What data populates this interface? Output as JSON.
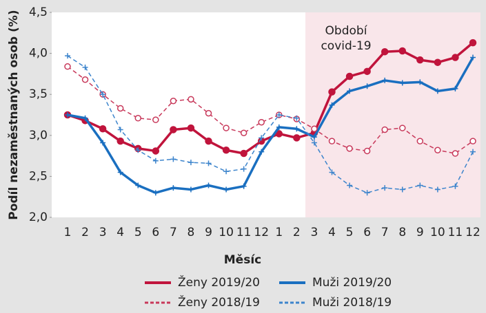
{
  "chart_data": {
    "type": "line",
    "annotation": [
      "Období",
      "covid-19"
    ],
    "x_label": "Měsíc",
    "y_label": "Podíl nezaměstnaných osob (%)",
    "categories": [
      "1",
      "2",
      "3",
      "4",
      "5",
      "6",
      "7",
      "8",
      "9",
      "10",
      "11",
      "12",
      "1",
      "2",
      "3",
      "4",
      "5",
      "6",
      "7",
      "8",
      "9",
      "10",
      "11",
      "12"
    ],
    "ylim": [
      2.0,
      4.5
    ],
    "yticks": [
      {
        "value": 2.0,
        "label": "2,0"
      },
      {
        "value": 2.5,
        "label": "2,5"
      },
      {
        "value": 3.0,
        "label": "3,0"
      },
      {
        "value": 3.5,
        "label": "3,5"
      },
      {
        "value": 4.0,
        "label": "4,0"
      },
      {
        "value": 4.5,
        "label": "4,5"
      }
    ],
    "grid": false,
    "series": [
      {
        "name": "Ženy 2019/20",
        "color": "#c0143c",
        "dash": false,
        "marker": "circle",
        "values": [
          3.25,
          3.18,
          3.08,
          2.93,
          2.84,
          2.81,
          3.07,
          3.09,
          2.93,
          2.82,
          2.78,
          2.93,
          3.02,
          2.97,
          3.03,
          3.53,
          3.72,
          3.78,
          4.02,
          4.03,
          3.92,
          3.89,
          3.95,
          4.13
        ]
      },
      {
        "name": "Muži 2019/20",
        "color": "#1a6fc0",
        "dash": false,
        "marker": "plus",
        "values": [
          3.25,
          3.21,
          2.91,
          2.55,
          2.39,
          2.3,
          2.36,
          2.34,
          2.39,
          2.34,
          2.38,
          2.8,
          3.1,
          3.08,
          2.98,
          3.37,
          3.54,
          3.6,
          3.67,
          3.64,
          3.65,
          3.54,
          3.57,
          3.95
        ]
      },
      {
        "name": "Ženy 2018/19",
        "color": "#c8385a",
        "dash": true,
        "marker": "circle",
        "values": [
          3.84,
          3.68,
          3.5,
          3.33,
          3.21,
          3.19,
          3.42,
          3.44,
          3.27,
          3.09,
          3.03,
          3.16,
          3.25,
          3.2,
          3.08,
          2.93,
          2.84,
          2.81,
          3.07,
          3.09,
          2.93,
          2.82,
          2.78,
          2.93
        ]
      },
      {
        "name": "Muži 2018/19",
        "color": "#3c84cc",
        "dash": true,
        "marker": "plus",
        "values": [
          3.97,
          3.83,
          3.5,
          3.07,
          2.82,
          2.69,
          2.71,
          2.67,
          2.66,
          2.56,
          2.59,
          2.97,
          3.25,
          3.21,
          2.91,
          2.55,
          2.39,
          2.3,
          2.36,
          2.34,
          2.39,
          2.34,
          2.38,
          2.8
        ]
      }
    ]
  }
}
